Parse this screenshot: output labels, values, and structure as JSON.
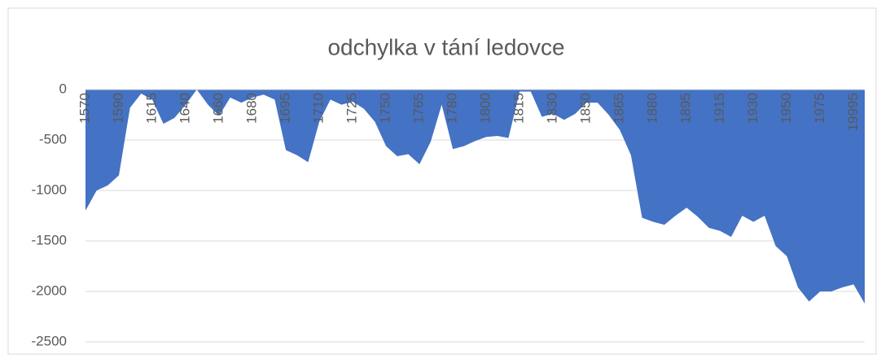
{
  "chart_data": {
    "type": "area",
    "title": "odchylka v tání ledovce",
    "categories": [
      "1570",
      null,
      null,
      "1590",
      null,
      null,
      "1615",
      null,
      null,
      "1640",
      null,
      null,
      "1660",
      null,
      null,
      "1680",
      null,
      null,
      "1695",
      null,
      null,
      "1710",
      null,
      null,
      "1725",
      null,
      null,
      "1750",
      null,
      null,
      "1765",
      null,
      null,
      "1780",
      null,
      null,
      "1800",
      null,
      null,
      "1815",
      null,
      null,
      "1830",
      null,
      null,
      "1850",
      null,
      null,
      "1865",
      null,
      null,
      "1880",
      null,
      null,
      "1895",
      null,
      null,
      "1915",
      null,
      null,
      "1930",
      null,
      null,
      "1950",
      null,
      null,
      "1975",
      null,
      null,
      "19995",
      null
    ],
    "values": [
      -1200,
      -1000,
      -950,
      -850,
      -180,
      -40,
      -100,
      -340,
      -280,
      -150,
      0,
      -150,
      -260,
      -80,
      -130,
      -80,
      -50,
      -100,
      -600,
      -650,
      -720,
      -320,
      -100,
      -150,
      -120,
      -190,
      -320,
      -560,
      -660,
      -640,
      -740,
      -520,
      -150,
      -590,
      -560,
      -510,
      -470,
      -460,
      -480,
      -20,
      -20,
      -270,
      -240,
      -300,
      -240,
      -130,
      -130,
      -250,
      -400,
      -650,
      -1270,
      -1310,
      -1340,
      -1250,
      -1170,
      -1260,
      -1370,
      -1400,
      -1460,
      -1250,
      -1310,
      -1250,
      -1550,
      -1650,
      -1960,
      -2100,
      -2000,
      -2000,
      -1960,
      -1930,
      -2120
    ],
    "color": "#4472c4",
    "ylim": [
      -2500,
      0
    ],
    "yticks": [
      0,
      -500,
      -1000,
      -1500,
      -2000,
      -2500
    ],
    "grid": true
  }
}
